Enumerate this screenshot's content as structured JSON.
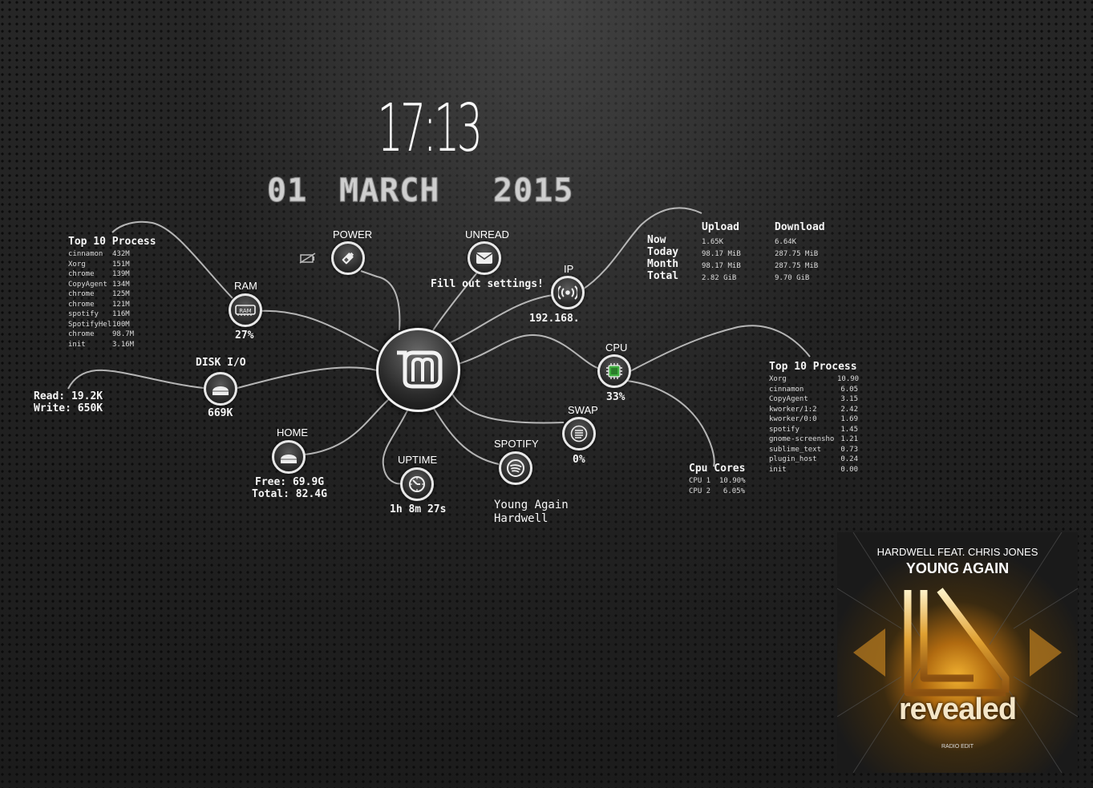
{
  "clock": {
    "time": "17:13",
    "day": "01",
    "month": "MARCH",
    "year": "2015"
  },
  "nodes": {
    "power": {
      "label": "POWER"
    },
    "unread": {
      "label": "UNREAD",
      "status": "Fill out settings!"
    },
    "ip": {
      "label": "IP",
      "value": "192.168."
    },
    "ram": {
      "label": "RAM",
      "value": "27%"
    },
    "disk": {
      "label": "DISK I/O",
      "value": "669K",
      "read": "Read: 19.2K",
      "write": "Write: 650K"
    },
    "home": {
      "label": "HOME",
      "free": "Free: 69.9G",
      "total": "Total: 82.4G"
    },
    "uptime": {
      "label": "UPTIME",
      "value": "1h 8m 27s"
    },
    "spotify": {
      "label": "SPOTIFY",
      "track": "Young Again",
      "artist": "Hardwell"
    },
    "swap": {
      "label": "SWAP",
      "value": "0%"
    },
    "cpu": {
      "label": "CPU",
      "value": "33%"
    }
  },
  "top_mem": {
    "title": "Top 10 Process",
    "rows": [
      [
        "cinnamon",
        "432M"
      ],
      [
        "Xorg",
        "151M"
      ],
      [
        "chrome",
        "139M"
      ],
      [
        "CopyAgent",
        "134M"
      ],
      [
        "chrome",
        "125M"
      ],
      [
        "chrome",
        "121M"
      ],
      [
        "spotify",
        "116M"
      ],
      [
        "SpotifyHel",
        "100M"
      ],
      [
        "chrome",
        "98.7M"
      ],
      [
        "init",
        "3.16M"
      ]
    ]
  },
  "top_cpu": {
    "title": "Top 10 Process",
    "rows": [
      [
        "Xorg",
        "10.90"
      ],
      [
        "cinnamon",
        "6.05"
      ],
      [
        "CopyAgent",
        "3.15"
      ],
      [
        "kworker/1:2",
        "2.42"
      ],
      [
        "kworker/0:0",
        "1.69"
      ],
      [
        "spotify",
        "1.45"
      ],
      [
        "gnome-screensho",
        "1.21"
      ],
      [
        "sublime_text",
        "0.73"
      ],
      [
        "plugin_host",
        "0.24"
      ],
      [
        "init",
        "0.00"
      ]
    ]
  },
  "cpu_cores": {
    "title": "Cpu Cores",
    "rows": [
      [
        "CPU 1",
        "10.90%"
      ],
      [
        "CPU 2",
        "6.05%"
      ]
    ]
  },
  "network": {
    "labels": [
      "Now",
      "Today",
      "Month",
      "Total"
    ],
    "upload_header": "Upload",
    "download_header": "Download",
    "upload": [
      "1.65K",
      "98.17 MiB",
      "98.17 MiB",
      "2.82 GiB"
    ],
    "download": [
      "6.64K",
      "287.75 MiB",
      "287.75 MiB",
      "9.70 GiB"
    ]
  },
  "album": {
    "artist_line": "HARDWELL FEAT. CHRIS JONES",
    "title_line": "YOUNG AGAIN",
    "label": "revealed",
    "edit": "RADIO EDIT"
  },
  "colors": {
    "cpu_accent": "#3fae3f",
    "line": "#c8c8c8"
  }
}
